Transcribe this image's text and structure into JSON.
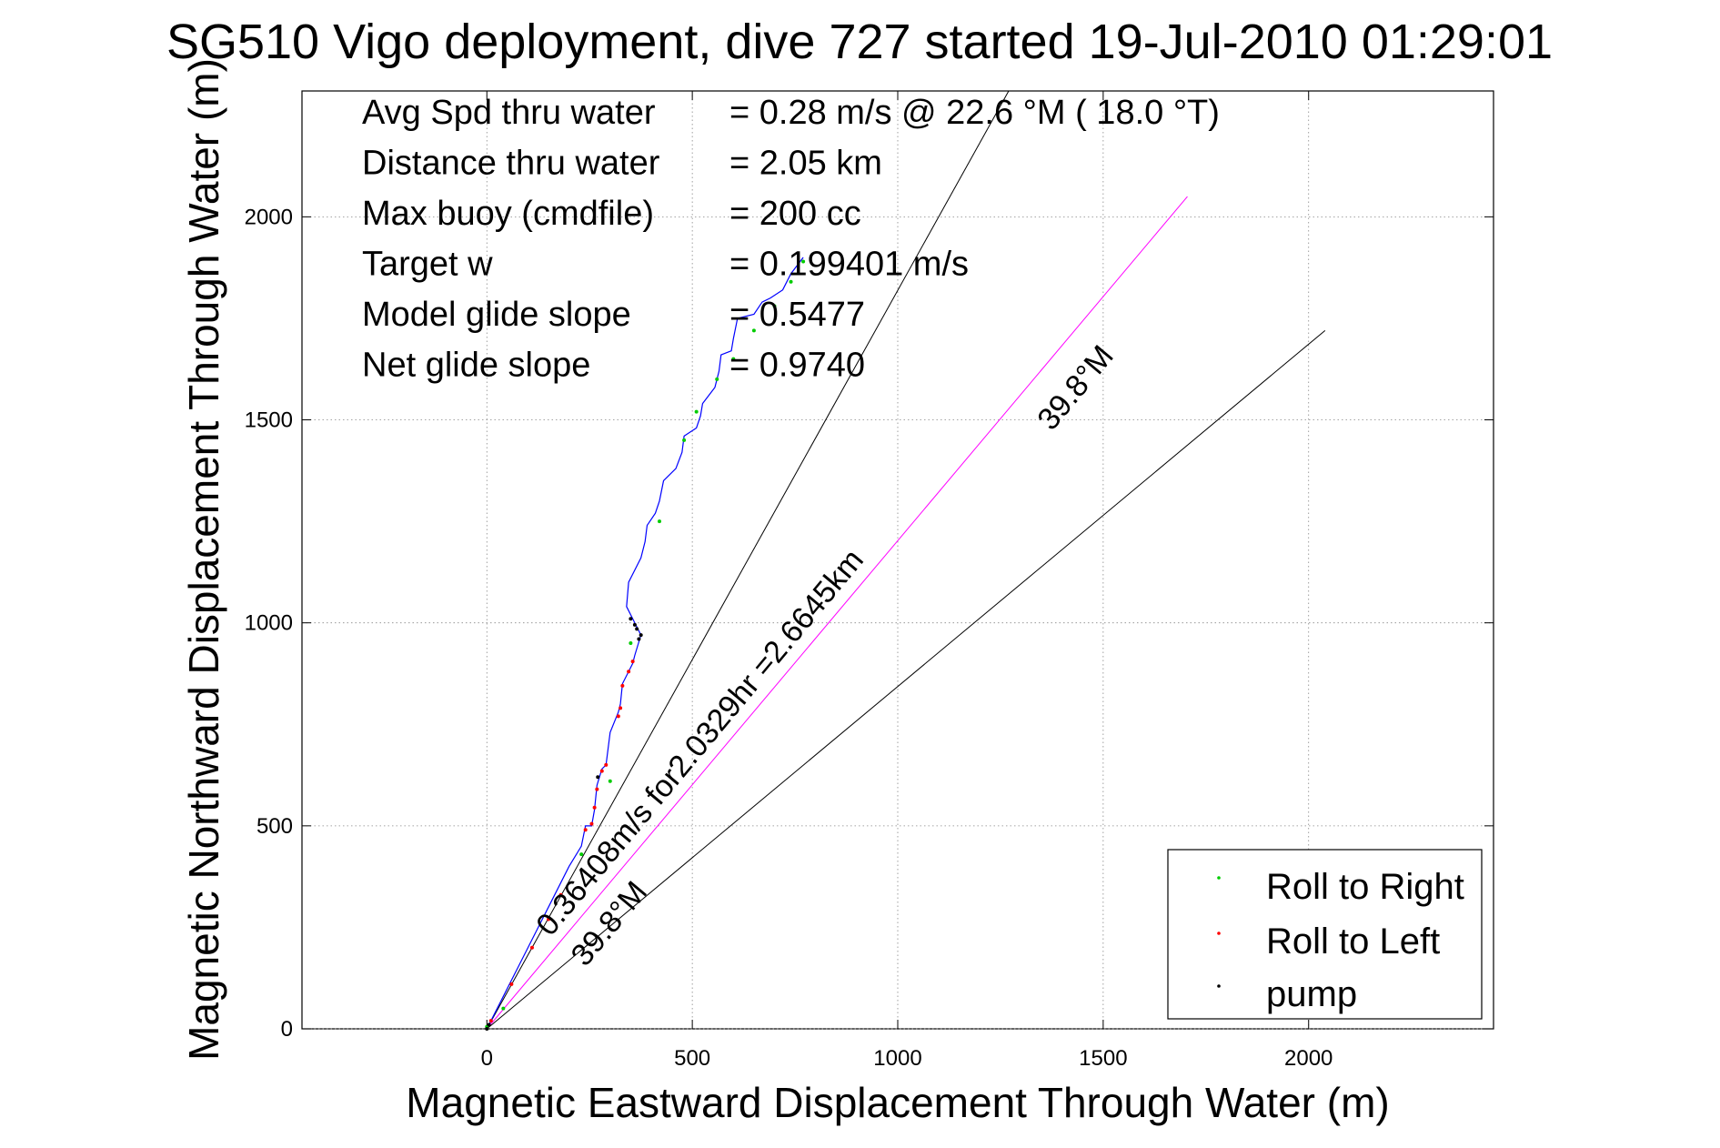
{
  "chart_data": {
    "type": "line",
    "title": "SG510 Vigo deployment, dive 727 started 19-Jul-2010 01:29:01",
    "xlabel": "Magnetic Eastward Displacement Through Water (m)",
    "ylabel": "Magnetic Northward Displacement Through Water (m)",
    "xlim": [
      -450,
      2450
    ],
    "ylim": [
      0,
      2310
    ],
    "xticks": [
      0,
      500,
      1000,
      1500,
      2000
    ],
    "xtick_labels": [
      "0",
      "500",
      "1000",
      "1500",
      "2000"
    ],
    "yticks": [
      0,
      500,
      1000,
      1500,
      2000
    ],
    "ytick_labels": [
      "0",
      "500",
      "1000",
      "1500",
      "2000"
    ],
    "grid": true,
    "info_lines": [
      {
        "label": "Avg Spd thru water",
        "value": "=  0.28 m/s @  22.6 °M ( 18.0 °T)"
      },
      {
        "label": "Distance thru water",
        "value": "=  2.05 km"
      },
      {
        "label": "Max buoy (cmdfile)",
        "value": "= 200 cc"
      },
      {
        "label": "Target w",
        "value": "= 0.199401 m/s"
      },
      {
        "label": "Model glide slope",
        "value": "= 0.5477"
      },
      {
        "label": "Net glide slope",
        "value": "= 0.9740"
      }
    ],
    "track": {
      "color": "#0000ff",
      "x": [
        0,
        40,
        80,
        120,
        160,
        200,
        230,
        240,
        255,
        262,
        268,
        280,
        290,
        300,
        320,
        325,
        330,
        345,
        355,
        360,
        375,
        355,
        340,
        345,
        375,
        385,
        390,
        410,
        420,
        430,
        460,
        475,
        480,
        510,
        520,
        525,
        555,
        565,
        570,
        595,
        600,
        610,
        650,
        670,
        690,
        720,
        740,
        770
      ],
      "y": [
        0,
        80,
        160,
        240,
        320,
        400,
        450,
        500,
        500,
        540,
        600,
        640,
        650,
        730,
        780,
        800,
        850,
        880,
        900,
        920,
        970,
        1010,
        1040,
        1100,
        1160,
        1200,
        1240,
        1270,
        1300,
        1350,
        1380,
        1420,
        1460,
        1480,
        1510,
        1540,
        1580,
        1620,
        1660,
        1670,
        1700,
        1750,
        1760,
        1790,
        1800,
        1820,
        1860,
        1900
      ]
    },
    "series": [
      {
        "name": "Roll to Right",
        "color": "#00cc00",
        "x": [
          0,
          40,
          230,
          300,
          350,
          420,
          480,
          510,
          560,
          600,
          650,
          700,
          740,
          770
        ],
        "y": [
          5,
          50,
          430,
          610,
          950,
          1250,
          1450,
          1520,
          1600,
          1650,
          1720,
          1780,
          1840,
          1890
        ]
      },
      {
        "name": "Roll to Left",
        "color": "#ff0000",
        "x": [
          10,
          60,
          110,
          150,
          180,
          240,
          255,
          262,
          268,
          280,
          290,
          320,
          325,
          330,
          345,
          355
        ],
        "y": [
          20,
          110,
          200,
          270,
          330,
          490,
          505,
          545,
          590,
          635,
          650,
          770,
          790,
          845,
          880,
          905
        ]
      },
      {
        "name": "pump",
        "color": "#000000",
        "x": [
          0,
          5,
          270,
          370,
          375,
          365,
          360,
          350
        ],
        "y": [
          0,
          10,
          620,
          960,
          970,
          985,
          995,
          1010
        ]
      }
    ],
    "reference_lines": [
      {
        "color": "#000000",
        "x": [
          0,
          1270
        ],
        "y": [
          0,
          2310
        ]
      },
      {
        "color": "#ff00ff",
        "x": [
          0,
          1705
        ],
        "y": [
          0,
          2050
        ]
      },
      {
        "color": "#000000",
        "x": [
          0,
          2040
        ],
        "y": [
          0,
          1720
        ]
      }
    ],
    "annotations": [
      {
        "text": "0.36408m/s for2.0329hr =2.6645km",
        "x": 155,
        "y": 225,
        "angle": 50.2
      },
      {
        "text": "39.8°M",
        "x": 240,
        "y": 150,
        "angle": 50.2
      },
      {
        "text": "39.8°M",
        "x": 1375,
        "y": 1470,
        "angle": 50.2
      }
    ],
    "legend": {
      "position": "bottom-right",
      "entries": [
        "Roll to Right",
        "Roll to Left",
        "pump"
      ]
    }
  }
}
